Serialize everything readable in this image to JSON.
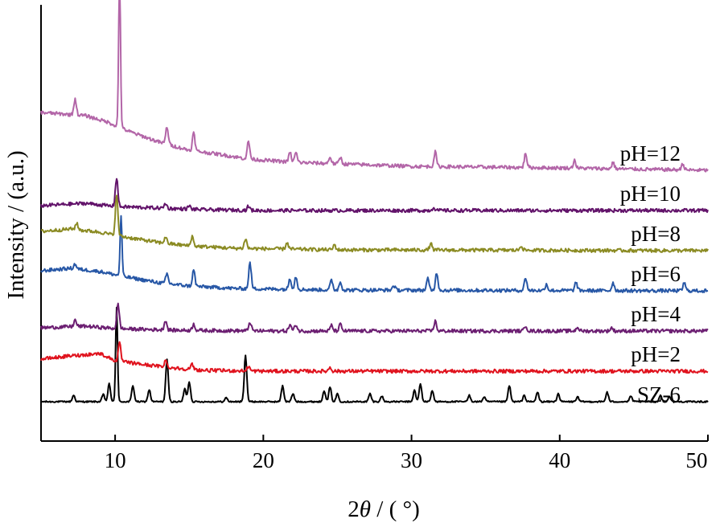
{
  "chart_data": {
    "type": "line",
    "title": "",
    "xlabel": "2θ / ( °)",
    "xlabel_parts": {
      "num": "2",
      "theta": "θ",
      "rest": " / ( °)"
    },
    "ylabel": "Intensity / (a.u.)",
    "xlim": [
      5,
      50
    ],
    "x_ticks": [
      10,
      20,
      30,
      40,
      50
    ],
    "y_ticks_shown": false,
    "grid": false,
    "legend": "none (inline labels at right)",
    "series": [
      {
        "name": "SZ-6",
        "color": "#000000",
        "offset": 0,
        "bg": [
          [
            5,
            12
          ],
          [
            50,
            12
          ]
        ],
        "peaks": [
          [
            7.2,
            8
          ],
          [
            9.2,
            9
          ],
          [
            9.6,
            22
          ],
          [
            10.1,
            118
          ],
          [
            11.2,
            20
          ],
          [
            12.3,
            15
          ],
          [
            13.5,
            52
          ],
          [
            14.7,
            16
          ],
          [
            15,
            25
          ],
          [
            17.5,
            5
          ],
          [
            18.8,
            58
          ],
          [
            21.3,
            20
          ],
          [
            22,
            10
          ],
          [
            24.1,
            14
          ],
          [
            24.5,
            18
          ],
          [
            25,
            10
          ],
          [
            27.2,
            10
          ],
          [
            28,
            7
          ],
          [
            30.2,
            14
          ],
          [
            30.6,
            22
          ],
          [
            31.4,
            14
          ],
          [
            33.9,
            8
          ],
          [
            34.9,
            6
          ],
          [
            36.6,
            20
          ],
          [
            37.6,
            8
          ],
          [
            38.5,
            12
          ],
          [
            39.9,
            10
          ],
          [
            41.2,
            6
          ],
          [
            43.2,
            12
          ],
          [
            44.8,
            7
          ],
          [
            46.8,
            8
          ],
          [
            47.4,
            7
          ]
        ]
      },
      {
        "name": "pH=2",
        "color": "#e0131e",
        "offset": 50,
        "bg": [
          [
            5,
            15
          ],
          [
            7,
            19
          ],
          [
            9,
            22
          ],
          [
            10,
            13
          ],
          [
            12,
            8
          ],
          [
            14,
            4
          ],
          [
            16,
            1
          ],
          [
            20,
            0
          ],
          [
            50,
            0
          ]
        ],
        "peaks": [
          [
            10.3,
            22
          ],
          [
            13.4,
            8
          ],
          [
            15.2,
            6
          ],
          [
            19,
            6
          ],
          [
            24.5,
            5
          ]
        ]
      },
      {
        "name": "pH=4",
        "color": "#6c1f72",
        "offset": 100,
        "bg": [
          [
            5,
            4
          ],
          [
            8,
            6
          ],
          [
            10,
            3
          ],
          [
            14,
            1
          ],
          [
            20,
            0
          ],
          [
            50,
            0
          ]
        ],
        "peaks": [
          [
            7.3,
            8
          ],
          [
            10.2,
            30
          ],
          [
            13.4,
            12
          ],
          [
            15.3,
            8
          ],
          [
            19.1,
            11
          ],
          [
            21.8,
            8
          ],
          [
            22.2,
            8
          ],
          [
            24.6,
            7
          ],
          [
            25.2,
            8
          ],
          [
            31.6,
            12
          ],
          [
            37.7,
            7
          ],
          [
            41.2,
            5
          ],
          [
            43.5,
            4
          ]
        ]
      },
      {
        "name": "pH=6",
        "color": "#2757a6",
        "offset": 150,
        "bg": [
          [
            5,
            25
          ],
          [
            7,
            28
          ],
          [
            9,
            24
          ],
          [
            10.5,
            18
          ],
          [
            13,
            10
          ],
          [
            15,
            6
          ],
          [
            18,
            3
          ],
          [
            25,
            1
          ],
          [
            50,
            0
          ]
        ],
        "peaks": [
          [
            7.3,
            6
          ],
          [
            10.4,
            75
          ],
          [
            13.5,
            12
          ],
          [
            15.3,
            20
          ],
          [
            19.1,
            32
          ],
          [
            21.8,
            14
          ],
          [
            22.2,
            16
          ],
          [
            24.6,
            12
          ],
          [
            25.2,
            10
          ],
          [
            28.8,
            6
          ],
          [
            31.1,
            14
          ],
          [
            31.7,
            22
          ],
          [
            37.7,
            16
          ],
          [
            39.1,
            8
          ],
          [
            41.1,
            10
          ],
          [
            43.6,
            10
          ],
          [
            48.4,
            10
          ]
        ]
      },
      {
        "name": "pH=8",
        "color": "#8b8b23",
        "offset": 200,
        "bg": [
          [
            5,
            24
          ],
          [
            7,
            27
          ],
          [
            9,
            23
          ],
          [
            10,
            19
          ],
          [
            13,
            10
          ],
          [
            15,
            6
          ],
          [
            18,
            3
          ],
          [
            25,
            1
          ],
          [
            50,
            0
          ]
        ],
        "peaks": [
          [
            7.4,
            8
          ],
          [
            10.1,
            50
          ],
          [
            13.4,
            8
          ],
          [
            15.2,
            12
          ],
          [
            18.8,
            12
          ],
          [
            21.6,
            8
          ],
          [
            24.8,
            6
          ],
          [
            31.3,
            8
          ],
          [
            37.4,
            6
          ]
        ]
      },
      {
        "name": "pH=10",
        "color": "#62136a",
        "offset": 250,
        "bg": [
          [
            5,
            6
          ],
          [
            8,
            9
          ],
          [
            10,
            5
          ],
          [
            13,
            3
          ],
          [
            16,
            1
          ],
          [
            20,
            0
          ],
          [
            50,
            0
          ]
        ],
        "peaks": [
          [
            10.1,
            36
          ],
          [
            13.4,
            6
          ],
          [
            15,
            4
          ],
          [
            19,
            5
          ],
          [
            31.5,
            4
          ]
        ]
      },
      {
        "name": "pH=12",
        "color": "#b366a8",
        "offset": 300,
        "bg": [
          [
            5,
            72
          ],
          [
            8,
            68
          ],
          [
            9.5,
            60
          ],
          [
            11,
            48
          ],
          [
            13,
            35
          ],
          [
            15,
            25
          ],
          [
            17,
            20
          ],
          [
            19,
            14
          ],
          [
            22,
            10
          ],
          [
            30,
            5
          ],
          [
            40,
            3
          ],
          [
            50,
            0
          ]
        ],
        "peaks": [
          [
            7.3,
            20
          ],
          [
            10.3,
            185
          ],
          [
            13.5,
            22
          ],
          [
            15.3,
            22
          ],
          [
            19,
            22
          ],
          [
            21.8,
            12
          ],
          [
            22.2,
            12
          ],
          [
            24.5,
            8
          ],
          [
            25.2,
            8
          ],
          [
            31.6,
            18
          ],
          [
            37.7,
            18
          ],
          [
            41,
            10
          ],
          [
            43.6,
            8
          ],
          [
            48.3,
            8
          ]
        ]
      }
    ]
  }
}
